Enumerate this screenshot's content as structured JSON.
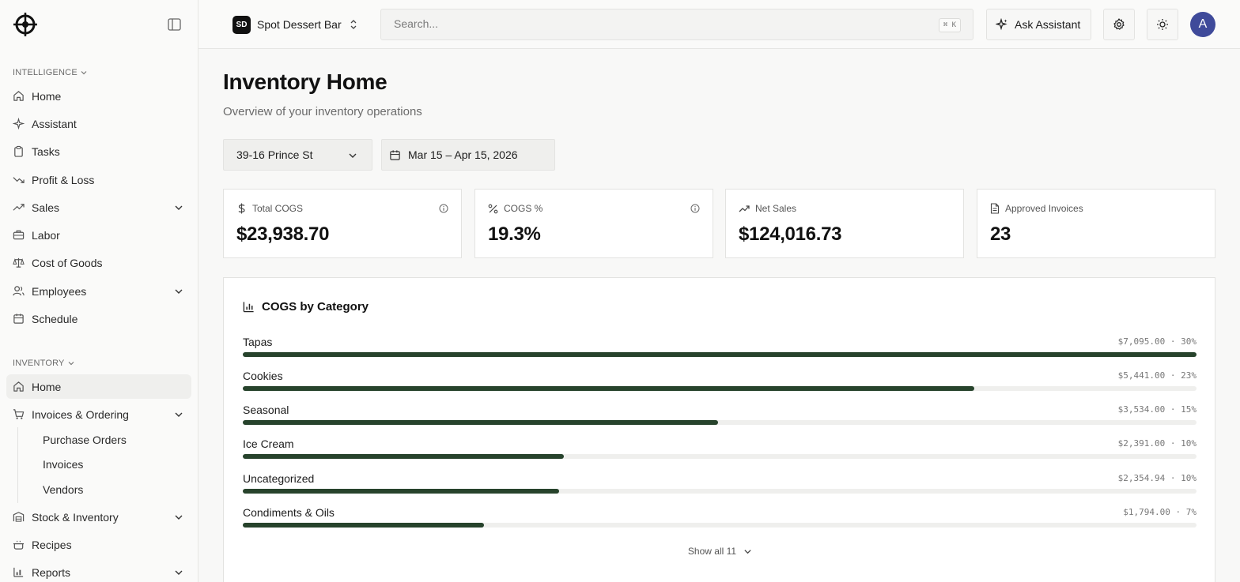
{
  "sidebar": {
    "sections": [
      {
        "label": "INTELLIGENCE"
      },
      {
        "label": "INVENTORY"
      }
    ],
    "intelligence_items": [
      {
        "label": "Home",
        "icon": "home-icon"
      },
      {
        "label": "Assistant",
        "icon": "sparkle-icon"
      },
      {
        "label": "Tasks",
        "icon": "clipboard-icon"
      },
      {
        "label": "Profit & Loss",
        "icon": "trend-down-icon"
      },
      {
        "label": "Sales",
        "icon": "trend-up-icon"
      },
      {
        "label": "Labor",
        "icon": "briefcase-icon"
      },
      {
        "label": "Cost of Goods",
        "icon": "scale-icon"
      },
      {
        "label": "Employees",
        "icon": "users-icon"
      },
      {
        "label": "Schedule",
        "icon": "calendar-icon"
      }
    ],
    "inventory_items": [
      {
        "label": "Home",
        "icon": "home-icon"
      },
      {
        "label": "Invoices & Ordering",
        "icon": "cart-icon"
      },
      {
        "label": "Stock & Inventory",
        "icon": "warehouse-icon"
      },
      {
        "label": "Recipes",
        "icon": "cooking-pot-icon"
      },
      {
        "label": "Reports",
        "icon": "chart-icon"
      }
    ],
    "sub_items": [
      "Purchase Orders",
      "Invoices",
      "Vendors"
    ]
  },
  "topbar": {
    "org_initials": "SD",
    "org_name": "Spot Dessert Bar",
    "search_placeholder": "Search...",
    "search_shortcut": "⌘ K",
    "ask_label": "Ask Assistant",
    "avatar_initial": "A"
  },
  "page": {
    "title": "Inventory Home",
    "subtitle": "Overview of your inventory operations",
    "location": "39-16 Prince St",
    "date_range": "Mar 15 – Apr 15, 2026"
  },
  "kpis": [
    {
      "label": "Total COGS",
      "value": "$23,938.70",
      "icon": "dollar-icon"
    },
    {
      "label": "COGS %",
      "value": "19.3%",
      "icon": "percent-icon"
    },
    {
      "label": "Net Sales",
      "value": "$124,016.73",
      "icon": "trend-up-icon"
    },
    {
      "label": "Approved Invoices",
      "value": "23",
      "icon": "file-icon"
    }
  ],
  "cogs_card": {
    "title": "COGS by Category",
    "show_all": "Show all 11",
    "categories": [
      {
        "name": "Tapas",
        "display": "$7,095.00 · 30%",
        "fill": 1.0
      },
      {
        "name": "Cookies",
        "display": "$5,441.00 · 23%",
        "fill": 0.767
      },
      {
        "name": "Seasonal",
        "display": "$3,534.00 · 15%",
        "fill": 0.498
      },
      {
        "name": "Ice Cream",
        "display": "$2,391.00 · 10%",
        "fill": 0.337
      },
      {
        "name": "Uncategorized",
        "display": "$2,354.94 · 10%",
        "fill": 0.332
      },
      {
        "name": "Condiments & Oils",
        "display": "$1,794.00 · 7%",
        "fill": 0.253
      }
    ]
  },
  "colors": {
    "bar_fill": "#27432c",
    "avatar": "#3f4a9a"
  }
}
